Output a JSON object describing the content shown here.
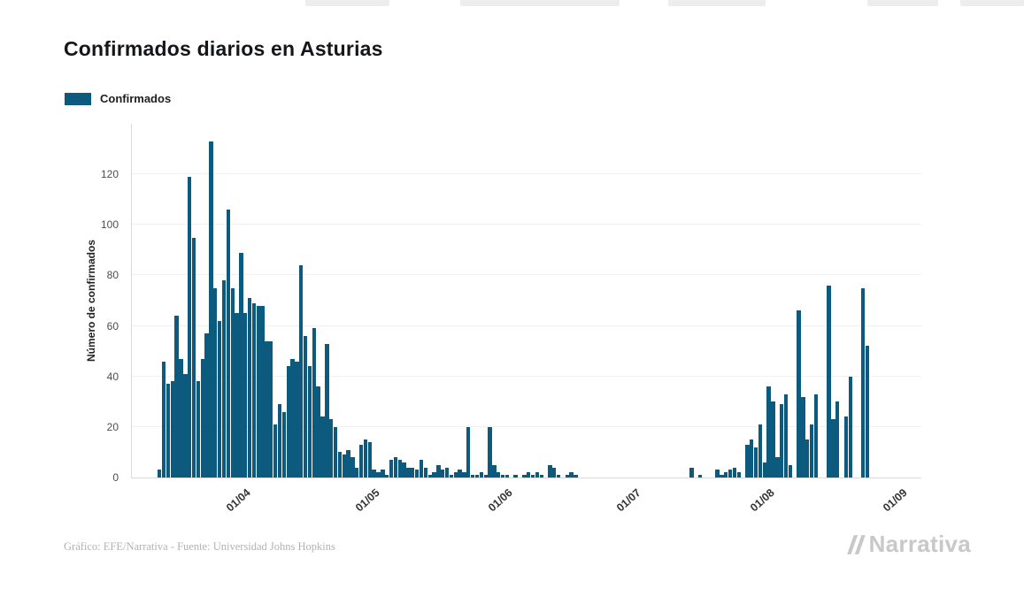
{
  "header": {
    "title": "Confirmados diarios en Asturias"
  },
  "legend": {
    "label": "Confirmados",
    "color": "#0d5a7f"
  },
  "footer": {
    "credit": "Gráfico: EFE/Narrativa - Fuente: Universidad Johns Hopkins",
    "brand": "Narrativa"
  },
  "chart_data": {
    "type": "bar",
    "title": "Confirmados diarios en Asturias",
    "series_name": "Confirmados",
    "bar_color": "#0d5a7f",
    "xlabel": "",
    "ylabel": "Número de confirmados",
    "ymax": 140,
    "yticks": [
      0,
      20,
      40,
      60,
      80,
      100,
      120
    ],
    "grid": "horizontal-light",
    "legend_position": "top-left",
    "x_tick_labels": [
      "01/04",
      "01/05",
      "01/06",
      "01/07",
      "01/08",
      "01/09"
    ],
    "x_tick_indices": [
      26,
      56,
      87,
      117,
      148,
      179
    ],
    "x_unit": "day",
    "values": [
      0,
      0,
      0,
      0,
      0,
      0,
      3,
      46,
      37,
      38,
      64,
      47,
      41,
      119,
      95,
      38,
      47,
      57,
      133,
      75,
      62,
      78,
      106,
      75,
      65,
      89,
      65,
      71,
      69,
      68,
      68,
      54,
      54,
      21,
      29,
      26,
      44,
      47,
      46,
      84,
      56,
      44,
      59,
      36,
      24,
      53,
      23,
      20,
      10,
      9,
      11,
      8,
      4,
      13,
      15,
      14,
      3,
      2,
      3,
      1,
      7,
      8,
      7,
      6,
      4,
      4,
      3,
      7,
      4,
      1,
      2,
      5,
      3,
      4,
      1,
      2,
      3,
      2,
      20,
      1,
      1,
      2,
      1,
      20,
      5,
      2,
      1,
      1,
      0,
      1,
      0,
      1,
      2,
      1,
      2,
      1,
      0,
      5,
      4,
      1,
      0,
      1,
      2,
      1,
      0,
      0,
      0,
      0,
      0,
      0,
      0,
      0,
      0,
      0,
      0,
      0,
      0,
      0,
      0,
      0,
      0,
      0,
      0,
      0,
      0,
      0,
      0,
      0,
      0,
      0,
      4,
      0,
      1,
      0,
      0,
      0,
      3,
      1,
      2,
      3,
      4,
      2,
      0,
      13,
      15,
      12,
      21,
      6,
      36,
      30,
      8,
      29,
      33,
      5,
      0,
      66,
      32,
      15,
      21,
      33,
      0,
      0,
      76,
      23,
      30,
      0,
      24,
      40,
      0,
      0,
      75,
      52,
      0,
      0,
      0,
      0,
      0,
      0,
      0,
      0,
      0,
      0,
      0,
      0
    ]
  }
}
